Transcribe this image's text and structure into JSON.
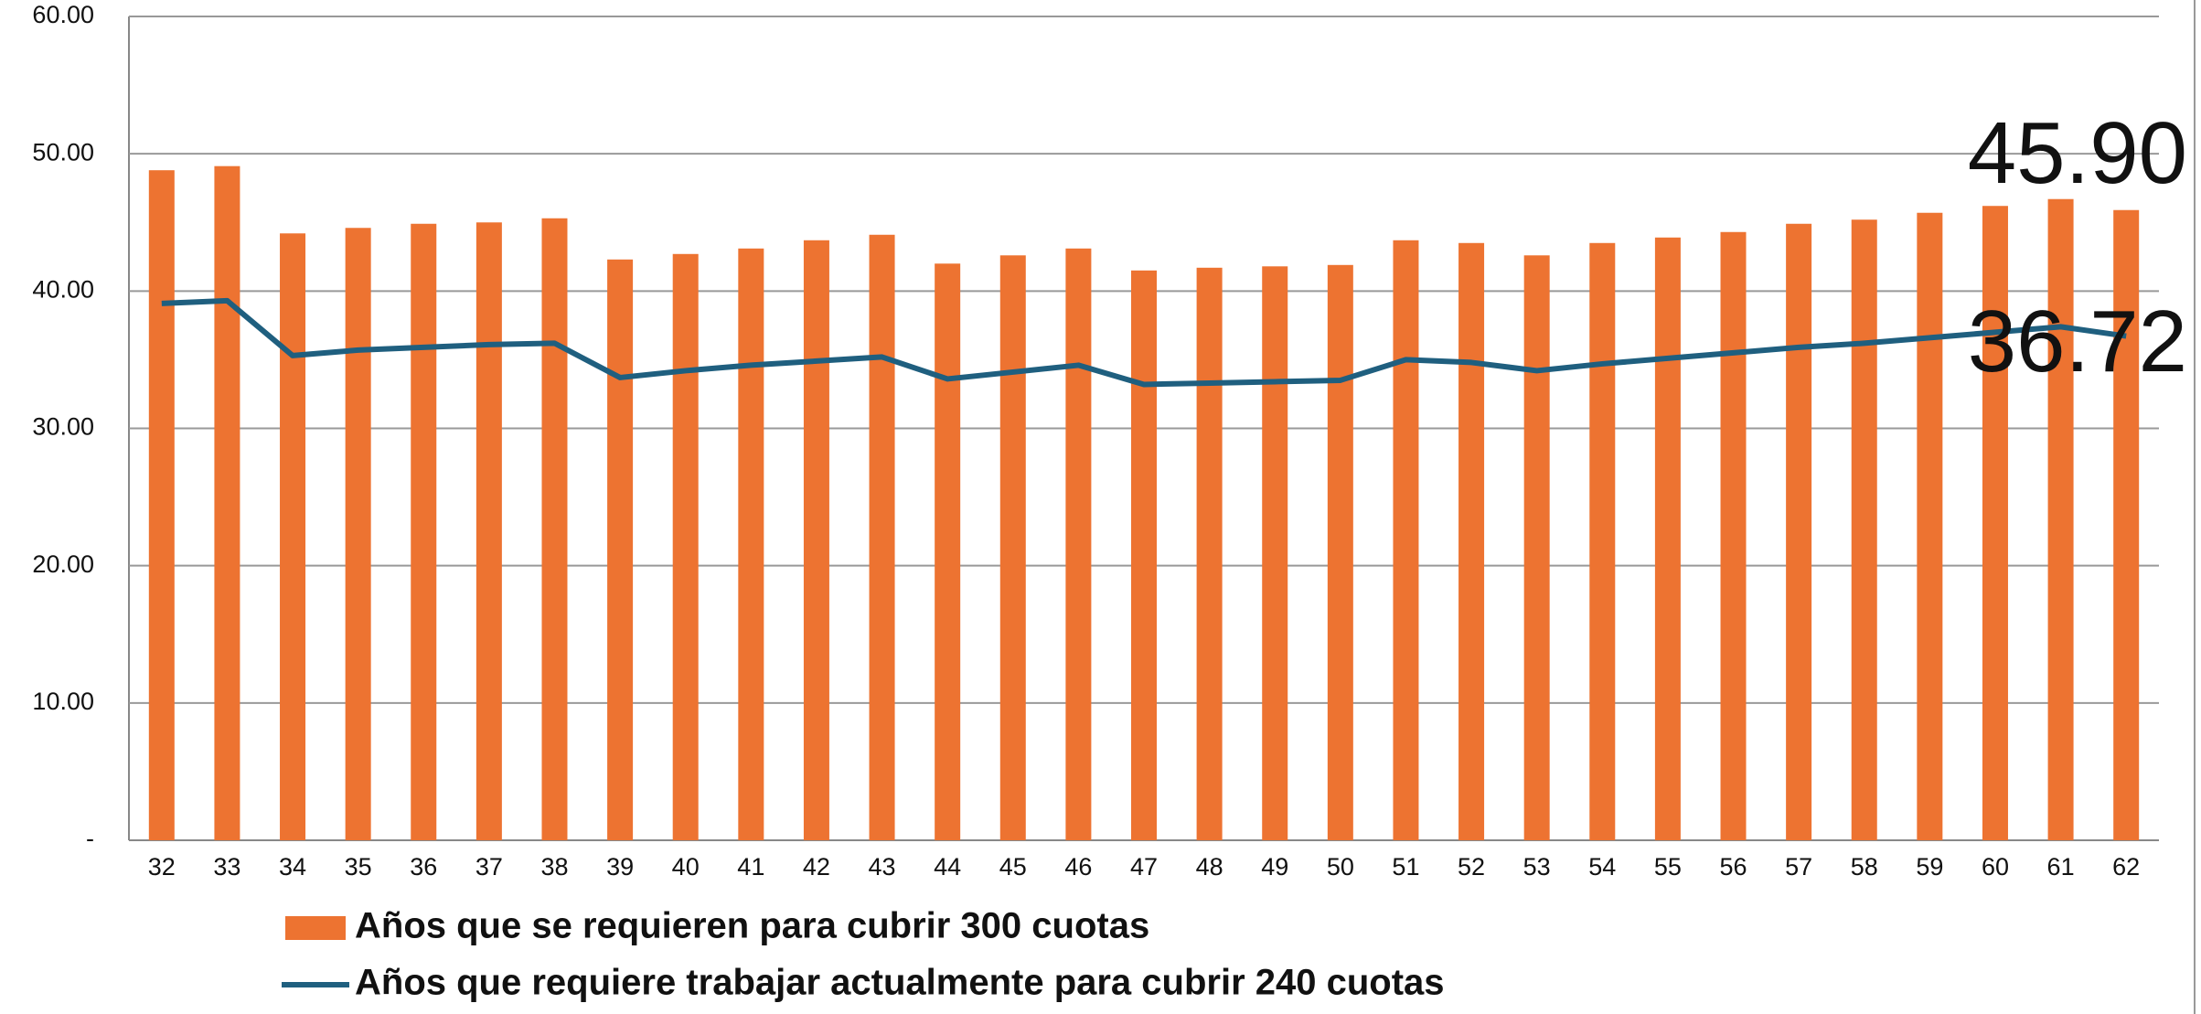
{
  "chart_data": {
    "type": "bar-line",
    "categories": [
      "32",
      "33",
      "34",
      "35",
      "36",
      "37",
      "38",
      "39",
      "40",
      "41",
      "42",
      "43",
      "44",
      "45",
      "46",
      "47",
      "48",
      "49",
      "50",
      "51",
      "52",
      "53",
      "54",
      "55",
      "56",
      "57",
      "58",
      "59",
      "60",
      "61",
      "62"
    ],
    "series": [
      {
        "name": "Años que se requieren para cubrir 300 cuotas",
        "type": "bar",
        "color": "#ed7331",
        "values": [
          48.8,
          49.1,
          44.2,
          44.6,
          44.9,
          45.0,
          45.3,
          42.3,
          42.7,
          43.1,
          43.7,
          44.1,
          42.0,
          42.6,
          43.1,
          41.5,
          41.7,
          41.8,
          41.9,
          43.7,
          43.5,
          42.6,
          43.5,
          43.9,
          44.3,
          44.9,
          45.2,
          45.7,
          46.2,
          46.7,
          45.9
        ],
        "value_labels": [
          null,
          null,
          null,
          null,
          null,
          null,
          null,
          null,
          null,
          null,
          null,
          null,
          null,
          null,
          null,
          null,
          null,
          null,
          null,
          null,
          null,
          null,
          null,
          null,
          null,
          null,
          null,
          null,
          null,
          null,
          "45.90"
        ]
      },
      {
        "name": "Años que requiere trabajar actualmente para cubrir 240 cuotas",
        "type": "line",
        "color": "#1f5f7f",
        "values": [
          39.1,
          39.3,
          35.3,
          35.7,
          35.9,
          36.1,
          36.2,
          33.7,
          34.2,
          34.6,
          34.9,
          35.2,
          33.6,
          34.1,
          34.6,
          33.2,
          33.3,
          33.4,
          33.5,
          35.0,
          34.8,
          34.2,
          34.7,
          35.1,
          35.5,
          35.9,
          36.2,
          36.6,
          37.0,
          37.4,
          36.72
        ],
        "value_labels": [
          null,
          null,
          null,
          null,
          null,
          null,
          null,
          null,
          null,
          null,
          null,
          null,
          null,
          null,
          null,
          null,
          null,
          null,
          null,
          null,
          null,
          null,
          null,
          null,
          null,
          null,
          null,
          null,
          null,
          null,
          "36.72"
        ]
      }
    ],
    "ylim": [
      0,
      60
    ],
    "yticks": [
      {
        "value": 0,
        "label": "-"
      },
      {
        "value": 10,
        "label": "10.00"
      },
      {
        "value": 20,
        "label": "20.00"
      },
      {
        "value": 30,
        "label": "30.00"
      },
      {
        "value": 40,
        "label": "40.00"
      },
      {
        "value": 50,
        "label": "50.00"
      },
      {
        "value": 60,
        "label": "60.00"
      }
    ],
    "grid": true,
    "legend": "bottom"
  }
}
